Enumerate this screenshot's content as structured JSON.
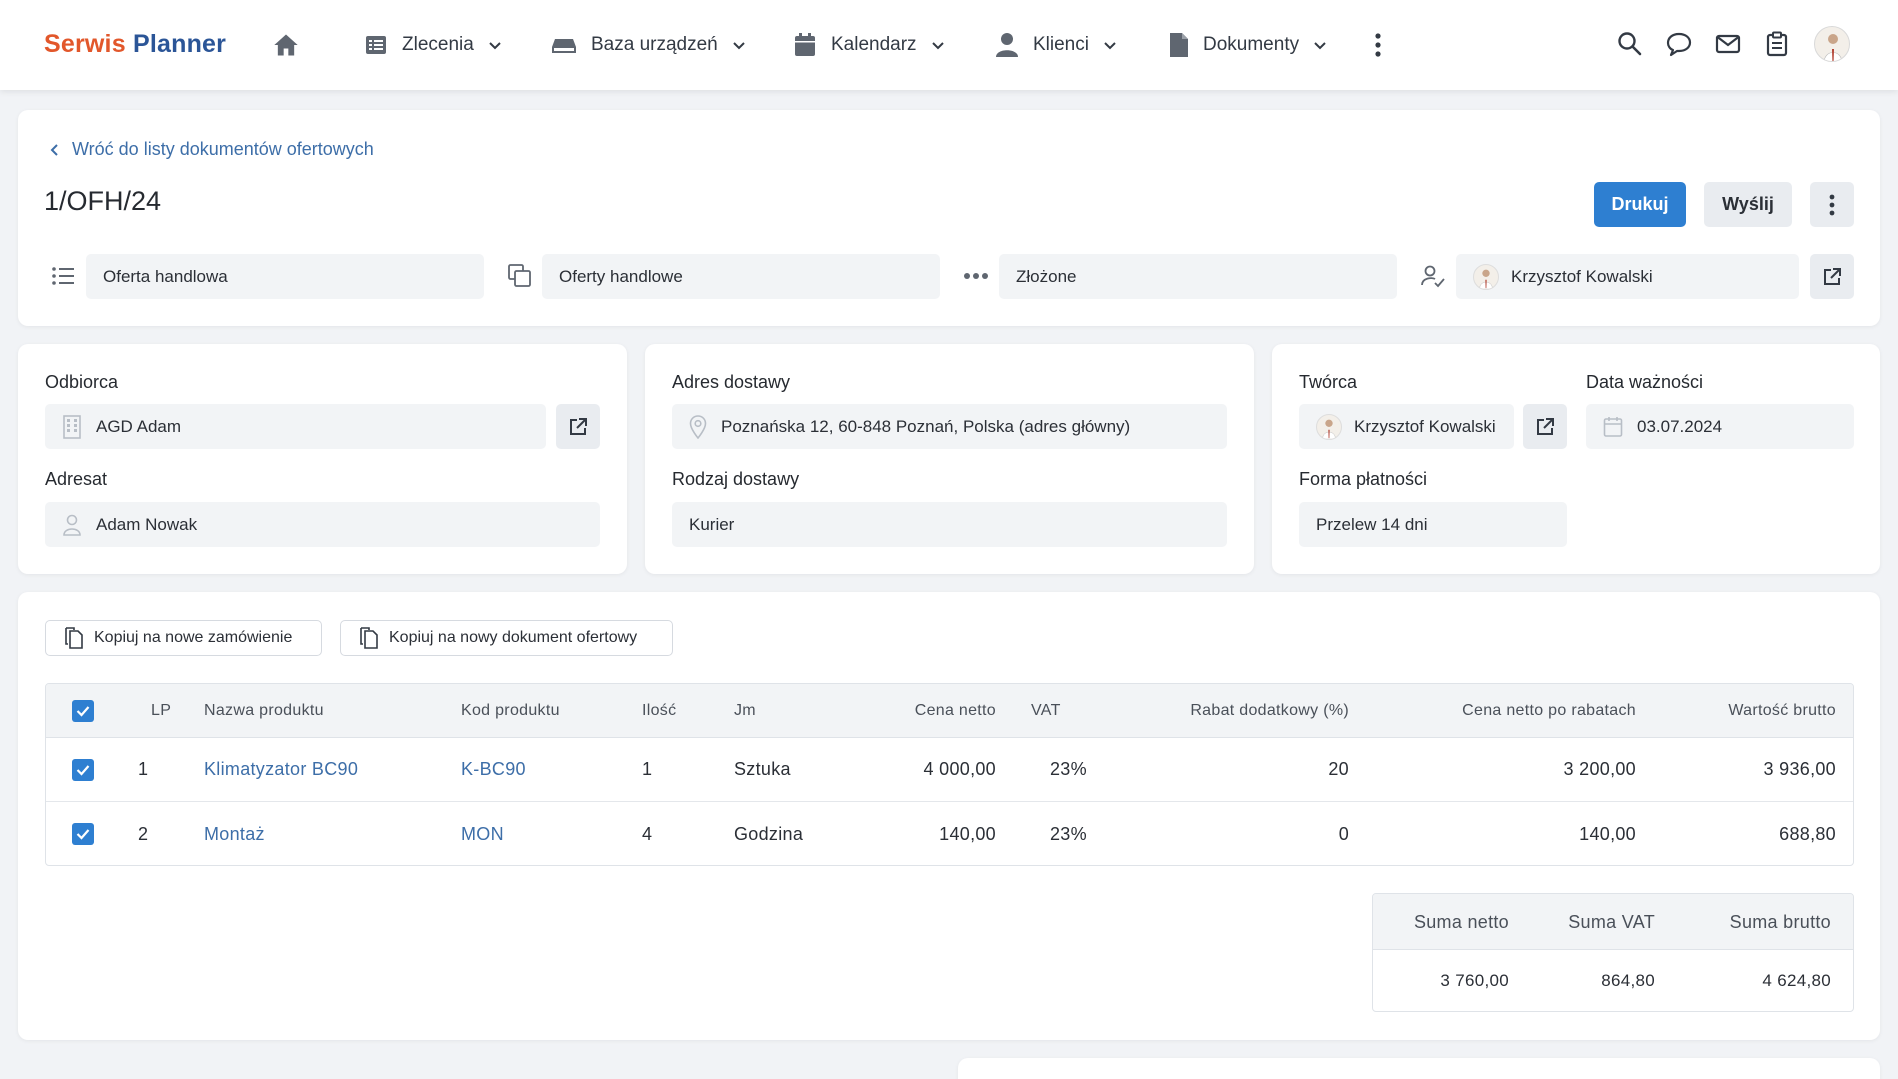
{
  "app": {
    "logo_part1": "Serwis",
    "logo_part2": "Planner",
    "colors": {
      "logo_orange": "#e2572b",
      "logo_blue": "#2b5597",
      "primary": "#2e7fd1",
      "link": "#3d6ea8"
    }
  },
  "nav": {
    "items": [
      {
        "label": "Zlecenia",
        "icon": "list-icon"
      },
      {
        "label": "Baza urządzeń",
        "icon": "device-icon"
      },
      {
        "label": "Kalendarz",
        "icon": "calendar-icon"
      },
      {
        "label": "Klienci",
        "icon": "person-icon"
      },
      {
        "label": "Dokumenty",
        "icon": "document-icon"
      }
    ]
  },
  "header": {
    "back_link": "Wróć do listy dokumentów ofertowych",
    "doc_number": "1/OFH/24",
    "print_label": "Drukuj",
    "send_label": "Wyślij",
    "doc_type": "Oferta handlowa",
    "category": "Oferty handlowe",
    "status": "Złożone",
    "assignee": "Krzysztof Kowalski"
  },
  "recipient": {
    "odbiorca_label": "Odbiorca",
    "odbiorca_value": "AGD Adam",
    "adresat_label": "Adresat",
    "adresat_value": "Adam Nowak"
  },
  "delivery": {
    "address_label": "Adres dostawy",
    "address_value": "Poznańska 12, 60-848 Poznań, Polska (adres główny)",
    "type_label": "Rodzaj dostawy",
    "type_value": "Kurier"
  },
  "meta": {
    "creator_label": "Twórca",
    "creator_value": "Krzysztof Kowalski",
    "expiry_label": "Data ważności",
    "expiry_value": "03.07.2024",
    "payment_label": "Forma płatności",
    "payment_value": "Przelew 14 dni"
  },
  "actions": {
    "copy_order": "Kopiuj na nowe zamówienie",
    "copy_offer": "Kopiuj na nowy dokument ofertowy"
  },
  "table": {
    "headers": {
      "lp": "LP",
      "name": "Nazwa produktu",
      "code": "Kod produktu",
      "qty": "Ilość",
      "unit": "Jm",
      "net": "Cena netto",
      "vat": "VAT",
      "discount": "Rabat dodatkowy (%)",
      "net_after": "Cena netto po rabatach",
      "gross": "Wartość brutto"
    },
    "rows": [
      {
        "lp": "1",
        "name": "Klimatyzator BC90",
        "code": "K-BC90",
        "qty": "1",
        "unit": "Sztuka",
        "net": "4 000,00",
        "vat": "23%",
        "discount": "20",
        "net_after": "3 200,00",
        "gross": "3 936,00"
      },
      {
        "lp": "2",
        "name": "Montaż",
        "code": "MON",
        "qty": "4",
        "unit": "Godzina",
        "net": "140,00",
        "vat": "23%",
        "discount": "0",
        "net_after": "140,00",
        "gross": "688,80"
      }
    ]
  },
  "totals": {
    "net_label": "Suma netto",
    "vat_label": "Suma VAT",
    "gross_label": "Suma brutto",
    "net_value": "3 760,00",
    "vat_value": "864,80",
    "gross_value": "4 624,80"
  }
}
